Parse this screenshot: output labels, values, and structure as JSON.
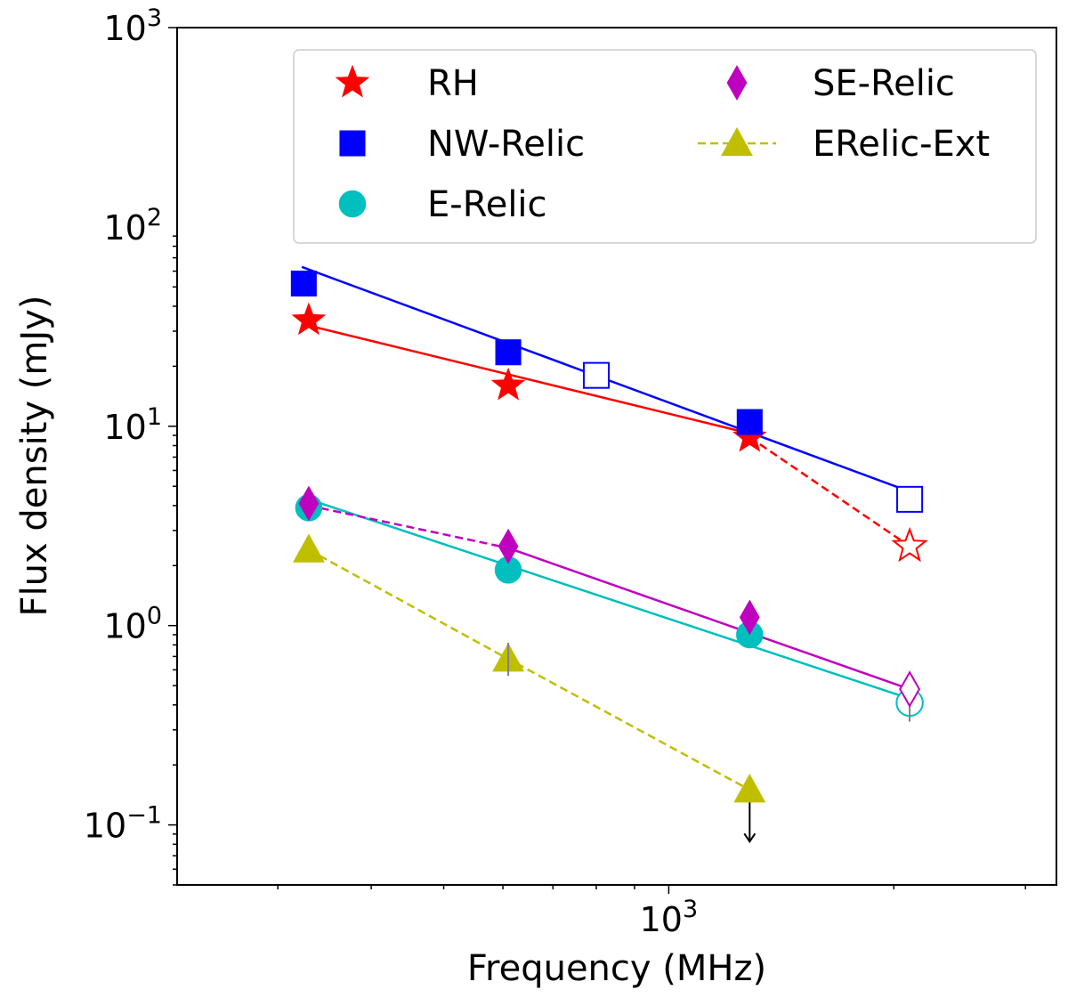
{
  "chart_data": {
    "type": "scatter",
    "xscale": "log",
    "yscale": "log",
    "xlabel": "Frequency (MHz)",
    "ylabel": "Flux density (mJy)",
    "xlim": [
      220,
      3300
    ],
    "ylim": [
      0.05,
      1000
    ],
    "x_tick_labels": [
      {
        "value": 1000,
        "base": "10",
        "exp": "3"
      }
    ],
    "y_tick_labels": [
      {
        "value": 1000,
        "base": "10",
        "exp": "3"
      },
      {
        "value": 100,
        "base": "10",
        "exp": "2"
      },
      {
        "value": 10,
        "base": "10",
        "exp": "1"
      },
      {
        "value": 1,
        "base": "10",
        "exp": "0"
      },
      {
        "value": 0.1,
        "base": "10",
        "exp": "−1"
      }
    ],
    "legend": {
      "placement": "top-right",
      "entries": [
        {
          "series": "RH",
          "label": "RH"
        },
        {
          "series": "NW-Relic",
          "label": "NW-Relic"
        },
        {
          "series": "E-Relic",
          "label": "E-Relic"
        },
        {
          "series": "SE-Relic",
          "label": "SE-Relic"
        },
        {
          "series": "ERelic-Ext",
          "label": "ERelic-Ext"
        }
      ]
    },
    "series": [
      {
        "name": "RH",
        "color": "#ff0000",
        "marker": "star",
        "points": [
          {
            "x": 330,
            "y": 34,
            "filled": true
          },
          {
            "x": 610,
            "y": 16,
            "filled": true
          },
          {
            "x": 1283,
            "y": 8.8,
            "filled": true
          },
          {
            "x": 2100,
            "y": 2.5,
            "filled": false
          }
        ],
        "fit": {
          "x": [
            330,
            1283
          ],
          "y": [
            32,
            9.2
          ]
        },
        "dashed": {
          "x": [
            1283,
            2100
          ],
          "y": [
            8.8,
            2.5
          ]
        }
      },
      {
        "name": "NW-Relic",
        "color": "#0000ff",
        "marker": "square",
        "points": [
          {
            "x": 325,
            "y": 52,
            "filled": true
          },
          {
            "x": 610,
            "y": 23.5,
            "filled": true
          },
          {
            "x": 800,
            "y": 18,
            "filled": false
          },
          {
            "x": 1283,
            "y": 10.5,
            "filled": true
          },
          {
            "x": 2100,
            "y": 4.3,
            "filled": false
          }
        ],
        "fit": {
          "x": [
            323,
            2100
          ],
          "y": [
            63,
            4.7
          ]
        }
      },
      {
        "name": "E-Relic",
        "color": "#00bfbf",
        "marker": "circle",
        "points": [
          {
            "x": 330,
            "y": 3.9,
            "filled": true
          },
          {
            "x": 610,
            "y": 1.9,
            "filled": true
          },
          {
            "x": 1283,
            "y": 0.9,
            "filled": true
          },
          {
            "x": 2100,
            "y": 0.41,
            "filled": false,
            "err": [
              0.33,
              0.52
            ]
          }
        ],
        "fit": {
          "x": [
            330,
            2100
          ],
          "y": [
            4.3,
            0.43
          ]
        }
      },
      {
        "name": "SE-Relic",
        "color": "#bf00bf",
        "marker": "diamond",
        "points": [
          {
            "x": 330,
            "y": 4.1,
            "filled": true
          },
          {
            "x": 610,
            "y": 2.5,
            "filled": true
          },
          {
            "x": 1283,
            "y": 1.1,
            "filled": true
          },
          {
            "x": 2100,
            "y": 0.48,
            "filled": false
          }
        ],
        "fit": {
          "x": [
            610,
            2100
          ],
          "y": [
            2.45,
            0.48
          ]
        },
        "dashed": {
          "x": [
            330,
            610
          ],
          "y": [
            4.0,
            2.45
          ]
        }
      },
      {
        "name": "ERelic-Ext",
        "color": "#bfbf00",
        "marker": "triangle",
        "points": [
          {
            "x": 330,
            "y": 2.4,
            "filled": true
          },
          {
            "x": 610,
            "y": 0.68,
            "filled": true,
            "err": [
              0.56,
              0.82
            ]
          },
          {
            "x": 1283,
            "y": 0.15,
            "filled": true,
            "upper_limit": true
          }
        ],
        "dashed": {
          "x": [
            330,
            610,
            1283
          ],
          "y": [
            2.4,
            0.68,
            0.15
          ]
        }
      }
    ]
  }
}
